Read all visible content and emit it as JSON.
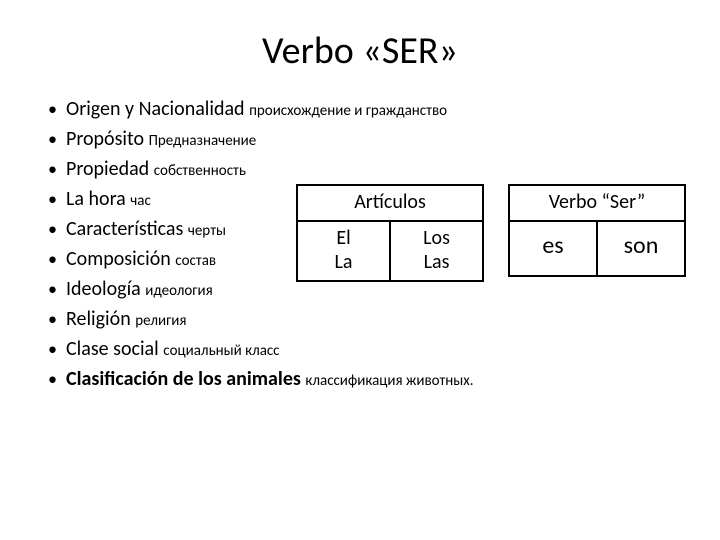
{
  "title": "Verbo «SER»",
  "list": [
    {
      "es": "Origen y Nacionalidad",
      "ru": "происхождение и гражданство",
      "bold": false
    },
    {
      "es": "Propósito",
      "ru": "Предназначение",
      "bold": false
    },
    {
      "es": "Propiedad",
      "ru": "собственность",
      "bold": false
    },
    {
      "es": "La hora",
      "ru": "час",
      "bold": false
    },
    {
      "es": "Características",
      "ru": "черты",
      "bold": false
    },
    {
      "es": "Composición",
      "ru": "состав",
      "bold": false
    },
    {
      "es": "Ideología",
      "ru": "идеология",
      "bold": false
    },
    {
      "es": "Religión",
      "ru": "религия",
      "bold": false
    },
    {
      "es": "Clase social",
      "ru": "социальный класс",
      "bold": false
    },
    {
      "es": "Clasificación de los animales",
      "ru": "классификация животных.",
      "bold": true
    }
  ],
  "articlesTable": {
    "header": "Artículos",
    "cells": [
      {
        "line1": "El",
        "line2": "La"
      },
      {
        "line1": "Los",
        "line2": "Las"
      }
    ]
  },
  "verbTable": {
    "header": "Verbo “Ser”",
    "cells": [
      "es",
      "son"
    ]
  },
  "colors": {
    "background": "#ffffff",
    "text": "#000000",
    "border": "#000000"
  }
}
